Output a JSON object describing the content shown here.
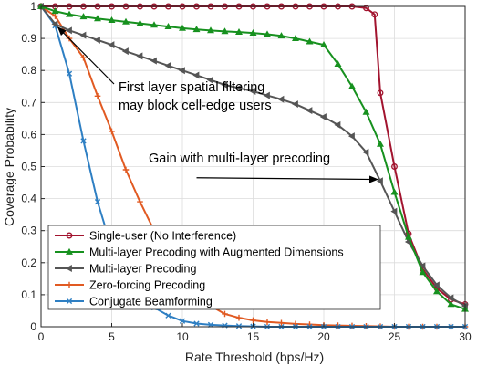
{
  "chart_data": {
    "type": "line",
    "title": "",
    "xlabel": "Rate Threshold (bps/Hz)",
    "ylabel": "Coverage Probability",
    "xlim": [
      0,
      30
    ],
    "ylim": [
      0,
      1
    ],
    "xticks": [
      0,
      5,
      10,
      15,
      20,
      25,
      30
    ],
    "yticks": [
      0,
      0.1,
      0.2,
      0.3,
      0.4,
      0.5,
      0.6,
      0.7,
      0.8,
      0.9,
      1
    ],
    "xtick_labels": [
      "0",
      "5",
      "10",
      "15",
      "20",
      "25",
      "30"
    ],
    "ytick_labels": [
      "0",
      "0.1",
      "0.2",
      "0.3",
      "0.4",
      "0.5",
      "0.6",
      "0.7",
      "0.8",
      "0.9",
      "1"
    ],
    "grid": true,
    "legend_position": "bottom-left",
    "series": [
      {
        "name": "Single-user (No Interference)",
        "color": "#a2142f",
        "marker": "circle",
        "x": [
          0,
          1,
          2,
          3,
          4,
          5,
          6,
          7,
          8,
          9,
          10,
          11,
          12,
          13,
          14,
          15,
          16,
          17,
          18,
          19,
          20,
          21,
          22,
          23,
          23.6,
          24,
          25,
          26,
          27,
          28,
          29,
          30
        ],
        "y": [
          1,
          1,
          1,
          1,
          1,
          1,
          1,
          1,
          1,
          1,
          1,
          1,
          1,
          1,
          1,
          1,
          1,
          1,
          1,
          1,
          1,
          1,
          1,
          0.995,
          0.975,
          0.73,
          0.5,
          0.29,
          0.18,
          0.12,
          0.085,
          0.07
        ]
      },
      {
        "name": "Multi-layer Precoding with Augmented Dimensions",
        "color": "#17911f",
        "marker": "triangle-up",
        "x": [
          0,
          1,
          2,
          3,
          4,
          5,
          6,
          7,
          8,
          9,
          10,
          11,
          12,
          13,
          14,
          15,
          16,
          17,
          18,
          19,
          20,
          21,
          22,
          23,
          24,
          25,
          26,
          27,
          28,
          29,
          30
        ],
        "y": [
          1,
          0.985,
          0.975,
          0.968,
          0.962,
          0.957,
          0.952,
          0.947,
          0.942,
          0.937,
          0.932,
          0.928,
          0.925,
          0.922,
          0.92,
          0.917,
          0.913,
          0.908,
          0.9,
          0.89,
          0.88,
          0.82,
          0.75,
          0.67,
          0.57,
          0.42,
          0.28,
          0.17,
          0.11,
          0.07,
          0.055
        ]
      },
      {
        "name": "Multi-layer Precoding",
        "color": "#555555",
        "marker": "triangle-left",
        "x": [
          0,
          1,
          2,
          3,
          4,
          5,
          6,
          7,
          8,
          9,
          10,
          11,
          12,
          13,
          14,
          15,
          16,
          17,
          18,
          19,
          20,
          21,
          22,
          23,
          24,
          25,
          26,
          27,
          28,
          29,
          30
        ],
        "y": [
          1,
          0.945,
          0.925,
          0.91,
          0.895,
          0.88,
          0.86,
          0.845,
          0.83,
          0.815,
          0.8,
          0.785,
          0.77,
          0.755,
          0.745,
          0.735,
          0.722,
          0.71,
          0.695,
          0.675,
          0.655,
          0.63,
          0.595,
          0.545,
          0.455,
          0.36,
          0.265,
          0.19,
          0.13,
          0.09,
          0.065
        ]
      },
      {
        "name": "Zero-forcing Precoding",
        "color": "#e15a22",
        "marker": "plus",
        "x": [
          0,
          1,
          2,
          3,
          4,
          5,
          6,
          7,
          8,
          9,
          10,
          11,
          12,
          13,
          14,
          15,
          16,
          17,
          18,
          19,
          20,
          21,
          22,
          23,
          24,
          25,
          26,
          27,
          28,
          29,
          30
        ],
        "y": [
          1,
          0.97,
          0.9,
          0.84,
          0.72,
          0.61,
          0.49,
          0.39,
          0.3,
          0.22,
          0.15,
          0.1,
          0.065,
          0.04,
          0.028,
          0.02,
          0.015,
          0.012,
          0.009,
          0.007,
          0.005,
          0.004,
          0.003,
          0.002,
          0.001,
          0,
          0,
          0,
          0,
          0,
          0
        ]
      },
      {
        "name": "Conjugate Beamforming",
        "color": "#2e7fc3",
        "marker": "x",
        "x": [
          0,
          1,
          2,
          3,
          4,
          5,
          6,
          7,
          8,
          9,
          10,
          11,
          12,
          13,
          14,
          15,
          16,
          17,
          18,
          19,
          20,
          21,
          22,
          23,
          24,
          25,
          26,
          27,
          28,
          29,
          30
        ],
        "y": [
          1,
          0.94,
          0.79,
          0.58,
          0.39,
          0.245,
          0.16,
          0.1,
          0.06,
          0.035,
          0.018,
          0.01,
          0.006,
          0.004,
          0.002,
          0.001,
          0,
          0,
          0,
          0,
          0,
          0,
          0,
          0,
          0,
          0,
          0,
          0,
          0,
          0,
          0
        ]
      }
    ],
    "annotations": [
      {
        "text_lines": [
          "First layer spatial filtering",
          "may block cell-edge users"
        ],
        "arrow_to": [
          1,
          0.935
        ]
      },
      {
        "text_lines": [
          "Gain with multi-layer precoding"
        ],
        "arrow_from": [
          11,
          0.465
        ],
        "arrow_to": [
          24,
          0.46
        ]
      }
    ]
  }
}
